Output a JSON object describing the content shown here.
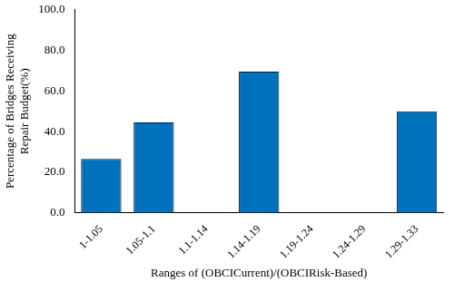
{
  "chart_data": {
    "type": "bar",
    "x_label": "Ranges of (OBCICurrent)/(OBCIRisk-Based)",
    "y_label": [
      "Percentage of Bridges Receiving",
      "Repair Budget(%)"
    ],
    "categories": [
      "1-1.05",
      "1.05-1.1",
      "1.1-1.14",
      "1.14-1.19",
      "1.19-1.24",
      "1.24-1.29",
      "1.29-1.33"
    ],
    "values": [
      26.5,
      44.5,
      0,
      69.5,
      0,
      0,
      50
    ],
    "color": "#0072bd",
    "ylim": [
      0,
      100
    ],
    "yticks": [
      {
        "value": 0,
        "label": "0.0"
      },
      {
        "value": 20,
        "label": "20.0"
      },
      {
        "value": 40,
        "label": "40.0"
      },
      {
        "value": 60,
        "label": "60.0"
      },
      {
        "value": 80,
        "label": "80.0"
      },
      {
        "value": 100,
        "label": "100.0"
      }
    ],
    "grid": false
  }
}
